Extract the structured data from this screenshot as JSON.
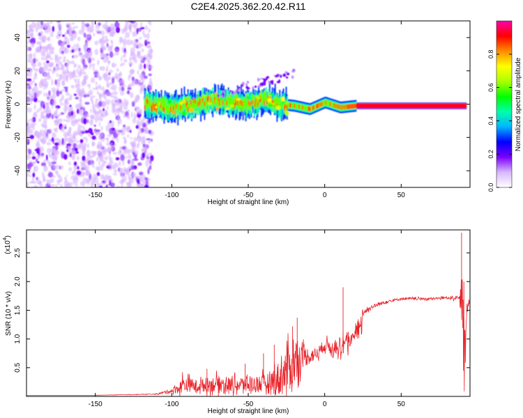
{
  "title": "C2E4.2025.362.20.42.R11",
  "chart_data": [
    {
      "type": "heatmap",
      "xlabel": "Height of straight line (km)",
      "ylabel": "Frequency (Hz)",
      "xlim": [
        -195,
        95
      ],
      "ylim": [
        -50,
        50
      ],
      "xticks": [
        -150,
        -100,
        -50,
        0,
        50
      ],
      "yticks": [
        -40,
        -20,
        0,
        20,
        40
      ],
      "colorbar": {
        "label": "Normalized spectral amplitude",
        "range": [
          0,
          1
        ],
        "ticks": [
          "0.0",
          "0.2",
          "0.4",
          "0.6",
          "0.8"
        ],
        "colors": [
          "#ffffff",
          "#d8b8ff",
          "#7a00ff",
          "#0000ff",
          "#00b4ff",
          "#00ffaa",
          "#00ff00",
          "#aaff00",
          "#ffff00",
          "#ff8c00",
          "#ff0000",
          "#ff00aa"
        ]
      },
      "features": [
        {
          "name": "diffuse noise",
          "x_range": [
            -195,
            -113
          ],
          "f_range": [
            -50,
            50
          ],
          "amplitude": 0.1
        },
        {
          "name": "signal track",
          "points": [
            [
              -118,
              0
            ],
            [
              -100,
              -2
            ],
            [
              -90,
              -1
            ],
            [
              -80,
              1
            ],
            [
              -70,
              2
            ],
            [
              -60,
              1
            ],
            [
              -50,
              0
            ],
            [
              -40,
              3
            ],
            [
              -30,
              0
            ],
            [
              -20,
              -1
            ],
            [
              -10,
              -3
            ],
            [
              0,
              1
            ],
            [
              10,
              -2
            ],
            [
              20,
              -1
            ],
            [
              50,
              -1
            ],
            [
              80,
              -1
            ],
            [
              92,
              -1
            ]
          ],
          "amplitude_range": [
            0.3,
            0.95
          ]
        }
      ]
    },
    {
      "type": "line",
      "xlabel": "Height of straight line (km)",
      "ylabel": "SNR (10 * v/v)",
      "y_scale": "(x10",
      "y_scale_exp": "4",
      "xlim": [
        -195,
        95
      ],
      "ylim": [
        0,
        2.9
      ],
      "xticks": [
        -150,
        -100,
        -50,
        0,
        50
      ],
      "yticks": [
        "0.5",
        "1.0",
        "1.5",
        "2.0",
        "2.5"
      ],
      "color": "#e8232a",
      "series": [
        {
          "name": "SNR envelope",
          "x": [
            -195,
            -150,
            -110,
            -100,
            -95,
            -92,
            -85,
            -70,
            -60,
            -50,
            -40,
            -35,
            -30,
            -25,
            -20,
            -15,
            -10,
            -5,
            0,
            5,
            10,
            15,
            20,
            25,
            30,
            35,
            40,
            50,
            60,
            70,
            80,
            85,
            88,
            90,
            91,
            92,
            93,
            95
          ],
          "y": [
            0.02,
            0.02,
            0.04,
            0.1,
            0.15,
            0.22,
            0.18,
            0.22,
            0.2,
            0.21,
            0.22,
            0.25,
            0.3,
            0.45,
            0.6,
            0.7,
            0.7,
            0.75,
            0.9,
            0.85,
            0.95,
            1.05,
            1.25,
            1.45,
            1.55,
            1.6,
            1.65,
            1.7,
            1.7,
            1.7,
            1.72,
            1.72,
            1.7,
            1.75,
            1.0,
            0.6,
            1.6,
            1.65
          ],
          "noise": [
            0,
            0,
            0.01,
            0.05,
            0.15,
            0.2,
            0.15,
            0.2,
            0.18,
            0.2,
            0.22,
            0.3,
            0.45,
            0.55,
            0.6,
            0.3,
            0.2,
            0.15,
            0.15,
            0.15,
            0.15,
            0.15,
            0.12,
            0.08,
            0.05,
            0.05,
            0.04,
            0.03,
            0.03,
            0.03,
            0.03,
            0.05,
            0.05,
            0.5,
            0.8,
            0.6,
            0.3,
            0.1
          ]
        },
        {
          "name": "spikes",
          "x": [
            -93,
            -77,
            -52,
            -40,
            -33,
            -21,
            -18,
            12,
            89.5,
            91
          ],
          "y": [
            0.42,
            0.48,
            0.57,
            0.75,
            0.9,
            1.22,
            1.37,
            1.9,
            2.85,
            2.0
          ]
        }
      ]
    }
  ]
}
